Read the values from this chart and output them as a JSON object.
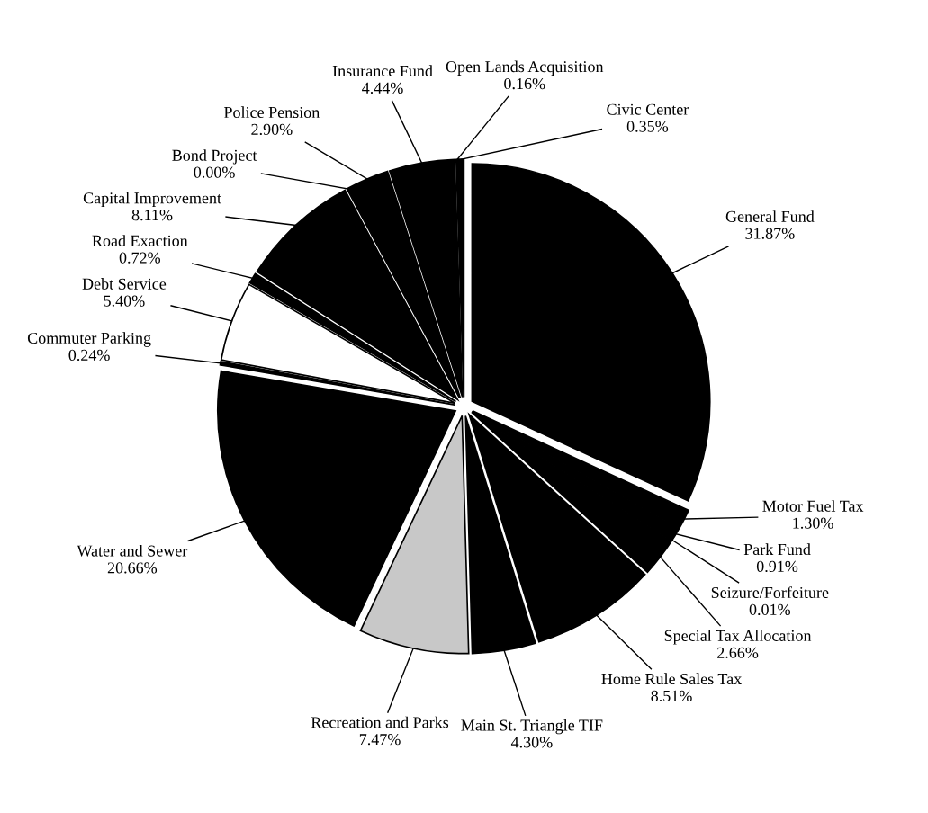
{
  "chart_data": {
    "type": "pie",
    "categories": [
      "General Fund",
      "Motor Fuel Tax",
      "Park Fund",
      "Seizure/Forfeiture",
      "Special Tax Allocation",
      "Home Rule Sales Tax",
      "Main St. Triangle TIF",
      "Recreation and Parks",
      "Water and Sewer",
      "Commuter Parking",
      "Debt Service",
      "Road Exaction",
      "Capital Improvement",
      "Bond Project",
      "Police Pension",
      "Insurance Fund",
      "Open Lands Acquisition",
      "Civic Center"
    ],
    "values": [
      31.87,
      1.3,
      0.91,
      0.01,
      2.66,
      8.51,
      4.3,
      7.47,
      20.66,
      0.24,
      5.4,
      0.72,
      8.11,
      0.0,
      2.9,
      4.44,
      0.16,
      0.35
    ],
    "value_labels": [
      "31.87%",
      "1.30%",
      "0.91%",
      "0.01%",
      "2.66%",
      "8.51%",
      "4.30%",
      "7.47%",
      "20.66%",
      "0.24%",
      "5.40%",
      "0.72%",
      "8.11%",
      "0.00%",
      "2.90%",
      "4.44%",
      "0.16%",
      "0.35%"
    ],
    "colors": [
      "#000000",
      "#000000",
      "#000000",
      "#000000",
      "#000000",
      "#000000",
      "#000000",
      "#c8c8c8",
      "#000000",
      "#000000",
      "#ffffff",
      "#000000",
      "#000000",
      "#000000",
      "#000000",
      "#000000",
      "#000000",
      "#000000"
    ]
  }
}
